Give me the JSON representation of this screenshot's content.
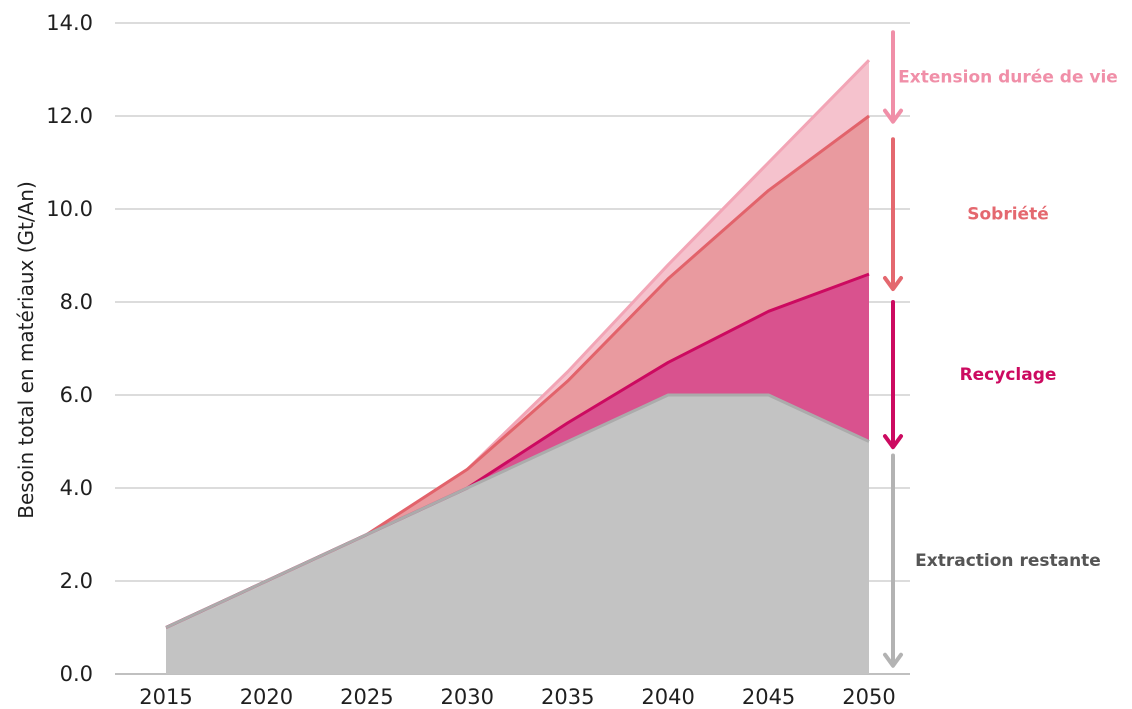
{
  "chart_data": {
    "type": "area",
    "x": [
      2015,
      2020,
      2025,
      2030,
      2035,
      2040,
      2045,
      2050
    ],
    "ylabel": "Besoin total en matériaux (Gt/An)",
    "xlabel": "",
    "ylim": [
      0,
      14
    ],
    "y_ticks": [
      "0.0",
      "2.0",
      "4.0",
      "6.0",
      "8.0",
      "10.0",
      "12.0",
      "14.0"
    ],
    "x_ticks": [
      "2015",
      "2020",
      "2025",
      "2030",
      "2035",
      "2040",
      "2045",
      "2050"
    ],
    "grid": true,
    "series": [
      {
        "name": "Extraction restante",
        "values": [
          1.0,
          2.0,
          3.0,
          4.0,
          5.0,
          6.0,
          6.0,
          5.0
        ],
        "color": "#c3c3c3",
        "line": "#ababab"
      },
      {
        "name": "Recyclage",
        "values": [
          1.0,
          2.0,
          3.0,
          4.0,
          5.4,
          6.7,
          7.8,
          8.6
        ],
        "color": "#d9528e",
        "line": "#cc0a60"
      },
      {
        "name": "Sobriété",
        "values": [
          1.0,
          2.0,
          3.0,
          4.4,
          6.3,
          8.5,
          10.4,
          12.0
        ],
        "color": "#e99a9f",
        "line": "#e2636b"
      },
      {
        "name": "Extension durée de vie",
        "values": [
          1.0,
          2.0,
          3.0,
          4.4,
          6.5,
          8.8,
          11.0,
          13.2
        ],
        "color": "#f5c2cd",
        "line": "#f2a5b6"
      }
    ],
    "annotations": [
      {
        "label": "Extension durée de vie",
        "from": 13.8,
        "to": 11.9,
        "color": "#f08fa8"
      },
      {
        "label": "Sobriété",
        "from": 11.5,
        "to": 8.3,
        "color": "#e4686f"
      },
      {
        "label": "Recyclage",
        "from": 8.0,
        "to": 4.9,
        "color": "#cc0a60"
      },
      {
        "label": "Extraction restante",
        "from": 4.7,
        "to": 0.2,
        "color": "#b3b3b3",
        "text_color": "#555555"
      }
    ]
  }
}
